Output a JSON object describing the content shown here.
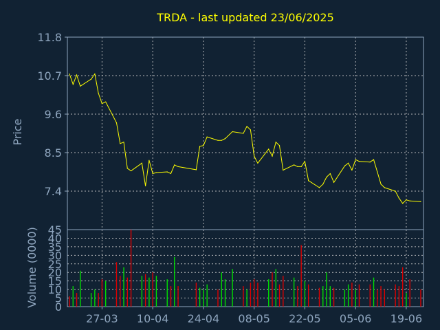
{
  "title": "TRDA - last updated 23/06/2025",
  "chart_data": [
    {
      "type": "line",
      "ylabel": "Price",
      "ylim": [
        6.3,
        11.8
      ],
      "yticks": [
        11.8,
        10.7,
        9.6,
        8.5,
        7.4
      ],
      "ytick_labels": [
        "11.8",
        "10.7",
        "9.6",
        "8.5",
        "7.4"
      ],
      "xticks": [
        {
          "date": "2025-03-27",
          "label": "27-03"
        },
        {
          "date": "2025-04-10",
          "label": "10-04"
        },
        {
          "date": "2025-04-24",
          "label": "24-04"
        },
        {
          "date": "2025-05-08",
          "label": "08-05"
        },
        {
          "date": "2025-05-22",
          "label": "22-05"
        },
        {
          "date": "2025-06-05",
          "label": "05-06"
        },
        {
          "date": "2025-06-19",
          "label": "19-06"
        }
      ],
      "xlim": [
        "2025-03-18",
        "2025-06-23"
      ],
      "grid": true,
      "series": [
        {
          "color": "#ffff00",
          "x": [
            "2025-03-18",
            "2025-03-19",
            "2025-03-20",
            "2025-03-21",
            "2025-03-24",
            "2025-03-25",
            "2025-03-26",
            "2025-03-27",
            "2025-03-28",
            "2025-03-31",
            "2025-04-01",
            "2025-04-02",
            "2025-04-03",
            "2025-04-04",
            "2025-04-07",
            "2025-04-08",
            "2025-04-09",
            "2025-04-10",
            "2025-04-11",
            "2025-04-14",
            "2025-04-15",
            "2025-04-16",
            "2025-04-17",
            "2025-04-22",
            "2025-04-23",
            "2025-04-24",
            "2025-04-25",
            "2025-04-28",
            "2025-04-29",
            "2025-04-30",
            "2025-05-02",
            "2025-05-05",
            "2025-05-06",
            "2025-05-07",
            "2025-05-08",
            "2025-05-09",
            "2025-05-12",
            "2025-05-13",
            "2025-05-14",
            "2025-05-15",
            "2025-05-16",
            "2025-05-19",
            "2025-05-20",
            "2025-05-21",
            "2025-05-22",
            "2025-05-23",
            "2025-05-26",
            "2025-05-27",
            "2025-05-28",
            "2025-05-29",
            "2025-05-30",
            "2025-06-02",
            "2025-06-03",
            "2025-06-04",
            "2025-06-05",
            "2025-06-06",
            "2025-06-09",
            "2025-06-10",
            "2025-06-11",
            "2025-06-12",
            "2025-06-13",
            "2025-06-16",
            "2025-06-17",
            "2025-06-18",
            "2025-06-19",
            "2025-06-20",
            "2025-06-23"
          ],
          "y": [
            10.75,
            10.45,
            10.72,
            10.4,
            10.6,
            10.75,
            10.2,
            9.9,
            9.95,
            9.35,
            8.76,
            8.8,
            8.05,
            7.98,
            8.2,
            7.55,
            8.28,
            7.9,
            7.93,
            7.95,
            7.9,
            8.15,
            8.1,
            8.01,
            8.68,
            8.7,
            8.95,
            8.85,
            8.85,
            8.9,
            9.1,
            9.05,
            9.25,
            9.15,
            8.4,
            8.2,
            8.6,
            8.4,
            8.8,
            8.7,
            8.0,
            8.15,
            8.1,
            8.1,
            8.25,
            7.7,
            7.5,
            7.6,
            7.8,
            7.9,
            7.65,
            8.12,
            8.2,
            8.0,
            8.3,
            8.25,
            8.23,
            8.3,
            7.95,
            7.6,
            7.5,
            7.4,
            7.2,
            7.05,
            7.15,
            7.12,
            7.1
          ]
        }
      ]
    },
    {
      "type": "bar",
      "ylabel": "Volume (0000)",
      "ylim": [
        0,
        45
      ],
      "yticks": [
        0,
        5,
        10,
        15,
        20,
        25,
        30,
        35,
        40,
        45
      ],
      "ytick_labels": [
        "0",
        "5",
        "10",
        "15",
        "20",
        "25",
        "30",
        "35",
        "40",
        "45"
      ],
      "xlim": [
        "2025-03-18",
        "2025-06-23"
      ],
      "up_color": "#00dd00",
      "down_color": "#dd0000",
      "series": [
        {
          "x": [
            "2025-03-18",
            "2025-03-19",
            "2025-03-20",
            "2025-03-21",
            "2025-03-24",
            "2025-03-25",
            "2025-03-26",
            "2025-03-27",
            "2025-03-28",
            "2025-03-31",
            "2025-04-01",
            "2025-04-02",
            "2025-04-03",
            "2025-04-04",
            "2025-04-07",
            "2025-04-08",
            "2025-04-09",
            "2025-04-10",
            "2025-04-11",
            "2025-04-14",
            "2025-04-15",
            "2025-04-16",
            "2025-04-17",
            "2025-04-22",
            "2025-04-23",
            "2025-04-24",
            "2025-04-25",
            "2025-04-28",
            "2025-04-29",
            "2025-04-30",
            "2025-05-02",
            "2025-05-05",
            "2025-05-06",
            "2025-05-07",
            "2025-05-08",
            "2025-05-09",
            "2025-05-12",
            "2025-05-13",
            "2025-05-14",
            "2025-05-15",
            "2025-05-16",
            "2025-05-19",
            "2025-05-20",
            "2025-05-21",
            "2025-05-22",
            "2025-05-23",
            "2025-05-26",
            "2025-05-27",
            "2025-05-28",
            "2025-05-29",
            "2025-05-30",
            "2025-06-02",
            "2025-06-03",
            "2025-06-04",
            "2025-06-05",
            "2025-06-06",
            "2025-06-09",
            "2025-06-10",
            "2025-06-11",
            "2025-06-12",
            "2025-06-13",
            "2025-06-16",
            "2025-06-17",
            "2025-06-18",
            "2025-06-19",
            "2025-06-20",
            "2025-06-23"
          ],
          "values": [
            6,
            12,
            8,
            21,
            8,
            10,
            8,
            16,
            15,
            26,
            18,
            23,
            17,
            45,
            18,
            19,
            17,
            20,
            18,
            16,
            12,
            29,
            12,
            14,
            11,
            10,
            13,
            10,
            20,
            16,
            22,
            12,
            10,
            14,
            16,
            14,
            16,
            20,
            22,
            13,
            18,
            17,
            12,
            36,
            15,
            13,
            11,
            12,
            20,
            12,
            11,
            10,
            13,
            14,
            10,
            13,
            13,
            17,
            10,
            12,
            10,
            13,
            12,
            23,
            8,
            16,
            10
          ],
          "direction": [
            "down",
            "up",
            "down",
            "up",
            "up",
            "up",
            "down",
            "down",
            "up",
            "down",
            "down",
            "up",
            "down",
            "down",
            "up",
            "down",
            "up",
            "down",
            "up",
            "up",
            "down",
            "up",
            "down",
            "down",
            "up",
            "up",
            "up",
            "down",
            "up",
            "up",
            "up",
            "down",
            "up",
            "down",
            "down",
            "down",
            "up",
            "down",
            "up",
            "down",
            "down",
            "up",
            "down",
            "down",
            "up",
            "down",
            "down",
            "up",
            "up",
            "up",
            "down",
            "up",
            "up",
            "down",
            "up",
            "down",
            "down",
            "up",
            "down",
            "down",
            "down",
            "down",
            "down",
            "down",
            "up",
            "down",
            "down"
          ]
        }
      ]
    }
  ]
}
